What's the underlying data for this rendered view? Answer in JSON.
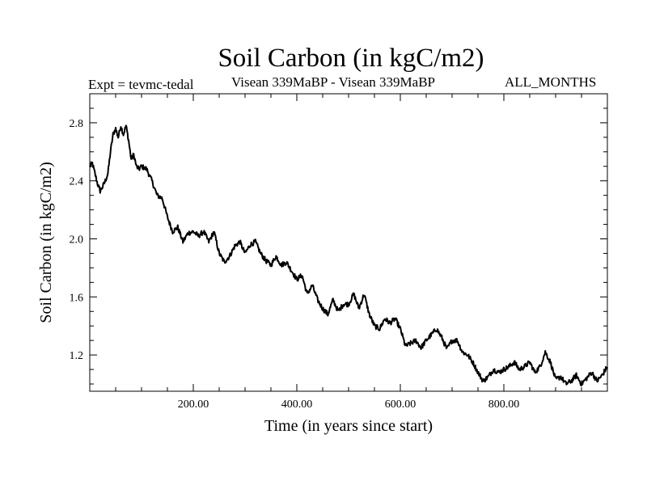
{
  "header": {
    "title": "Soil Carbon (in kgC/m2)",
    "expt": "Expt = tevmc-tedal",
    "subtitle": "Visean 339MaBP - Visean 339MaBP",
    "months": "ALL_MONTHS"
  },
  "chart_data": {
    "type": "line",
    "title": "Soil Carbon (in kgC/m2)",
    "xlabel": "Time (in years since start)",
    "ylabel": "Soil Carbon (in kgC/m2)",
    "xlim": [
      0,
      1000
    ],
    "ylim": [
      0.95,
      3.0
    ],
    "x_ticks": [
      200,
      400,
      600,
      800
    ],
    "x_tick_labels": [
      "200.00",
      "400.00",
      "600.00",
      "800.00"
    ],
    "y_ticks": [
      1.2,
      1.6,
      2.0,
      2.4,
      2.8
    ],
    "y_tick_labels": [
      "1.2",
      "1.6",
      "2.0",
      "2.4",
      "2.8"
    ],
    "series": [
      {
        "name": "Soil Carbon",
        "color": "#000000",
        "x": [
          0,
          5,
          10,
          15,
          20,
          25,
          30,
          35,
          40,
          45,
          50,
          55,
          60,
          65,
          70,
          75,
          80,
          85,
          90,
          95,
          100,
          110,
          120,
          130,
          140,
          150,
          160,
          170,
          180,
          190,
          200,
          210,
          220,
          230,
          240,
          250,
          260,
          270,
          280,
          290,
          300,
          310,
          320,
          330,
          340,
          350,
          360,
          370,
          380,
          390,
          400,
          410,
          420,
          430,
          440,
          450,
          460,
          470,
          480,
          490,
          500,
          510,
          520,
          530,
          540,
          550,
          560,
          570,
          580,
          590,
          600,
          610,
          620,
          630,
          640,
          650,
          660,
          670,
          680,
          690,
          700,
          710,
          720,
          730,
          740,
          750,
          760,
          770,
          780,
          790,
          800,
          810,
          820,
          830,
          840,
          850,
          860,
          870,
          880,
          890,
          900,
          910,
          920,
          930,
          940,
          950,
          960,
          970,
          980,
          990,
          1000
        ],
        "y": [
          2.5,
          2.52,
          2.45,
          2.38,
          2.33,
          2.36,
          2.4,
          2.45,
          2.6,
          2.72,
          2.76,
          2.7,
          2.78,
          2.72,
          2.78,
          2.68,
          2.55,
          2.58,
          2.5,
          2.48,
          2.5,
          2.48,
          2.4,
          2.3,
          2.28,
          2.15,
          2.05,
          2.08,
          1.98,
          2.04,
          2.05,
          2.02,
          2.05,
          1.98,
          2.05,
          1.9,
          1.84,
          1.88,
          1.95,
          1.98,
          1.9,
          1.96,
          1.98,
          1.9,
          1.85,
          1.82,
          1.88,
          1.82,
          1.84,
          1.78,
          1.72,
          1.75,
          1.62,
          1.68,
          1.58,
          1.52,
          1.48,
          1.58,
          1.5,
          1.55,
          1.55,
          1.62,
          1.52,
          1.62,
          1.48,
          1.4,
          1.38,
          1.45,
          1.42,
          1.45,
          1.38,
          1.26,
          1.28,
          1.3,
          1.25,
          1.3,
          1.34,
          1.38,
          1.32,
          1.24,
          1.3,
          1.3,
          1.22,
          1.2,
          1.15,
          1.08,
          1.02,
          1.05,
          1.1,
          1.08,
          1.1,
          1.12,
          1.15,
          1.1,
          1.12,
          1.15,
          1.08,
          1.12,
          1.22,
          1.15,
          1.03,
          1.05,
          1.0,
          1.02,
          1.06,
          1.0,
          1.04,
          1.08,
          1.02,
          1.06,
          1.12
        ]
      }
    ]
  }
}
